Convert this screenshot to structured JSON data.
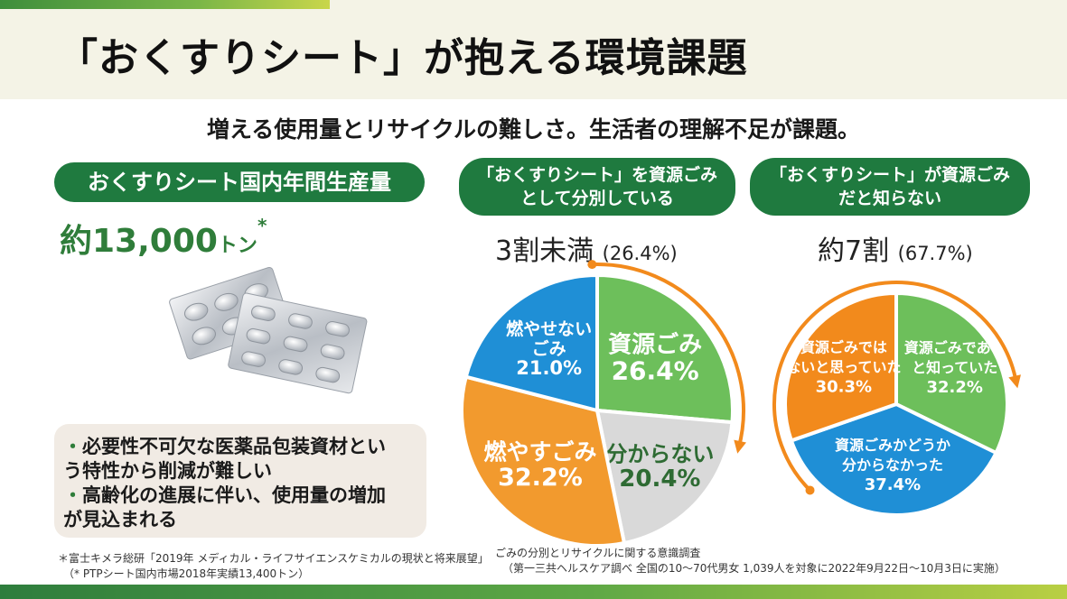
{
  "title": "「おくすりシート」が抱える環境課題",
  "subtitle": "増える使用量とリサイクルの難しさ。生活者の理解不足が課題。",
  "production": {
    "label": "おくすりシート国内年間生産量",
    "value": "約13,000",
    "unit": "トン",
    "mark": "*"
  },
  "notes": [
    {
      "bullet": "・",
      "text": "必要性不可欠な医薬品包装資材とい"
    },
    {
      "bullet": "",
      "text": "う特性から削減が難しい"
    },
    {
      "bullet": "・",
      "text": "高齢化の進展に伴い、使用量の増加"
    },
    {
      "bullet": "",
      "text": "が見込まれる"
    }
  ],
  "footnotes": {
    "source1": "＊富士キメラ総研「2019年 メディカル・ライフサイエンスケミカルの現状と将来展望」",
    "source2": "（* PTPシート国内市場2018年実績13,400トン）",
    "survey1": "ごみの分別とリサイクルに関する意識調査",
    "survey2": "（第一三共ヘルスケア調べ 全国の10～70代男女 1,039人を対象に2022年9月22日～10月3日に実施）"
  },
  "chart_data": [
    {
      "type": "pie",
      "title_line1": "「おくすりシート」を資源ごみ",
      "title_line2": "として分別している",
      "headline": "3割未満",
      "headline_pct": "(26.4%)",
      "slices": [
        {
          "label": [
            "資源ごみ"
          ],
          "value": 26.4,
          "value_label": "26.4%",
          "color": "#6dbf5b",
          "text_color": "#ffffff"
        },
        {
          "label": [
            "分からない"
          ],
          "value": 20.4,
          "value_label": "20.4%",
          "color": "#d9d9d9",
          "text_color": "#2e6b33"
        },
        {
          "label": [
            "燃やすごみ"
          ],
          "value": 32.2,
          "value_label": "32.2%",
          "color": "#f29a2e",
          "text_color": "#ffffff"
        },
        {
          "label": [
            "燃やせない",
            "ごみ"
          ],
          "value": 21.0,
          "value_label": "21.0%",
          "color": "#1f8fd6",
          "text_color": "#ffffff"
        }
      ],
      "arrow_color": "#f28a1c"
    },
    {
      "type": "pie",
      "title_line1": "「おくすりシート」が資源ごみ",
      "title_line2": "だと知らない",
      "headline": "約7割",
      "headline_pct": "(67.7%)",
      "slices": [
        {
          "label": [
            "資源ごみである",
            "と知っていた"
          ],
          "value": 32.2,
          "value_label": "32.2%",
          "color": "#6dbf5b",
          "text_color": "#ffffff"
        },
        {
          "label": [
            "資源ごみかどうか",
            "分からなかった"
          ],
          "value": 37.4,
          "value_label": "37.4%",
          "color": "#1f8fd6",
          "text_color": "#ffffff"
        },
        {
          "label": [
            "資源ごみでは",
            "ないと思っていた"
          ],
          "value": 30.3,
          "value_label": "30.3%",
          "color": "#f28a1c",
          "text_color": "#ffffff"
        }
      ],
      "arrow_color": "#f28a1c"
    }
  ]
}
